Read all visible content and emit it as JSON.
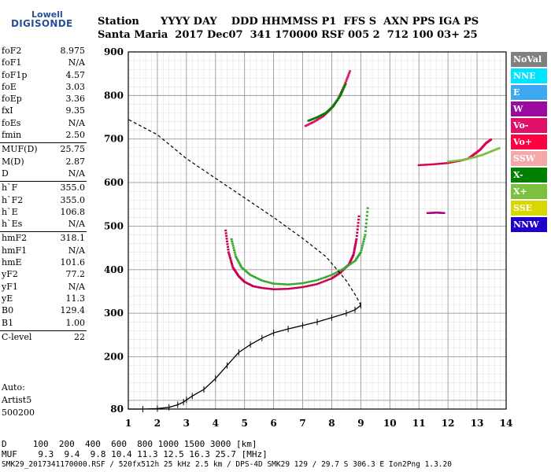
{
  "logo": {
    "line1": "Lowell",
    "line2": "DIGISONDE"
  },
  "header": {
    "row1": "Station      YYYY DAY    DDD HHMMSS P1  FFS S  AXN PPS IGA PS",
    "row2": "Santa Maria  2017 Dec07  341 170000 RSF 005 2  712 100 03+ 25"
  },
  "params": [
    [
      {
        "k": "foF2",
        "v": "8.975"
      },
      {
        "k": "foF1",
        "v": "N/A"
      },
      {
        "k": "foF1p",
        "v": "4.57"
      },
      {
        "k": "foE",
        "v": "3.03"
      },
      {
        "k": "foEp",
        "v": "3.36"
      },
      {
        "k": "fxI",
        "v": "9.35"
      },
      {
        "k": "foEs",
        "v": "N/A"
      },
      {
        "k": "fmin",
        "v": "2.50"
      }
    ],
    [
      {
        "k": "MUF(D)",
        "v": "25.75"
      },
      {
        "k": "M(D)",
        "v": "2.87"
      },
      {
        "k": "D",
        "v": "N/A"
      }
    ],
    [
      {
        "k": "h`F",
        "v": "355.0"
      },
      {
        "k": "h`F2",
        "v": "355.0"
      },
      {
        "k": "h`E",
        "v": "106.8"
      },
      {
        "k": "h`Es",
        "v": "N/A"
      }
    ],
    [
      {
        "k": "hmF2",
        "v": "318.1"
      },
      {
        "k": "hmF1",
        "v": "N/A"
      },
      {
        "k": "hmE",
        "v": "101.6"
      },
      {
        "k": "yF2",
        "v": "77.2"
      },
      {
        "k": "yF1",
        "v": "N/A"
      },
      {
        "k": "yE",
        "v": "11.3"
      },
      {
        "k": "B0",
        "v": "129.4"
      },
      {
        "k": "B1",
        "v": "1.00"
      }
    ],
    [
      {
        "k": "C-level",
        "v": "22"
      }
    ]
  ],
  "auto": {
    "line1": "Auto:",
    "line2": "Artist5",
    "line3": "500200"
  },
  "legend": [
    {
      "label": "NoVal",
      "color": "#808080"
    },
    {
      "label": "NNE",
      "color": "#00e5ff"
    },
    {
      "label": "E",
      "color": "#3ea8f0"
    },
    {
      "label": "W",
      "color": "#9b0aa0"
    },
    {
      "label": "Vo-",
      "color": "#e0106a"
    },
    {
      "label": "Vo+",
      "color": "#ff0040"
    },
    {
      "label": "SSW",
      "color": "#f4a8a8"
    },
    {
      "label": "X-",
      "color": "#008000"
    },
    {
      "label": "X+",
      "color": "#7cc040"
    },
    {
      "label": "SSE",
      "color": "#d8d800"
    },
    {
      "label": "NNW",
      "color": "#2000c8"
    }
  ],
  "footer": {
    "row1": "D     100  200  400  600  800 1000 1500 3000 [km]",
    "row2": "MUF    9.3  9.4  9.8 10.4 11.3 12.5 16.3 25.7 [MHz]",
    "row3": "SMK29_2017341170000.RSF / 520fx512h 25 kHz 2.5 km / DPS-4D SMK29 129 / 29.7 S 306.3 E Ion2Png 1.3.20"
  },
  "chart_data": {
    "type": "scatter",
    "xlim": [
      1,
      14
    ],
    "ylim": [
      80,
      900
    ],
    "x_ticks": [
      1,
      2,
      3,
      4,
      5,
      6,
      7,
      8,
      9,
      10,
      11,
      12,
      13,
      14
    ],
    "y_ticks": [
      80,
      200,
      300,
      400,
      500,
      600,
      700,
      800,
      900
    ],
    "grid": true,
    "series": [
      {
        "color": "#c80050",
        "points": [
          [
            4.35,
            490
          ],
          [
            4.45,
            440
          ],
          [
            4.6,
            405
          ],
          [
            4.8,
            385
          ],
          [
            5.0,
            372
          ],
          [
            5.3,
            362
          ],
          [
            5.6,
            358
          ],
          [
            6.0,
            355
          ],
          [
            6.5,
            356
          ],
          [
            7.0,
            360
          ],
          [
            7.5,
            367
          ],
          [
            8.0,
            380
          ],
          [
            8.3,
            393
          ],
          [
            8.6,
            413
          ],
          [
            8.75,
            435
          ],
          [
            8.85,
            470
          ],
          [
            8.95,
            530
          ]
        ]
      },
      {
        "color": "#3aa830",
        "points": [
          [
            4.55,
            470
          ],
          [
            4.7,
            430
          ],
          [
            4.9,
            405
          ],
          [
            5.2,
            388
          ],
          [
            5.6,
            375
          ],
          [
            6.0,
            368
          ],
          [
            6.5,
            366
          ],
          [
            7.0,
            369
          ],
          [
            7.5,
            376
          ],
          [
            8.0,
            388
          ],
          [
            8.4,
            402
          ],
          [
            8.8,
            420
          ],
          [
            9.0,
            440
          ],
          [
            9.15,
            480
          ],
          [
            9.25,
            550
          ]
        ]
      },
      {
        "color": "#e0106a",
        "points": [
          [
            7.1,
            730
          ],
          [
            7.4,
            740
          ],
          [
            7.7,
            752
          ],
          [
            7.95,
            768
          ],
          [
            8.2,
            790
          ],
          [
            8.45,
            825
          ],
          [
            8.65,
            860
          ]
        ]
      },
      {
        "color": "#008000",
        "points": [
          [
            7.2,
            742
          ],
          [
            7.5,
            750
          ],
          [
            7.8,
            760
          ],
          [
            8.05,
            775
          ],
          [
            8.3,
            800
          ],
          [
            8.5,
            830
          ]
        ]
      },
      {
        "color": "#d80050",
        "points": [
          [
            11.0,
            640
          ],
          [
            11.5,
            642
          ],
          [
            12.0,
            645
          ],
          [
            12.4,
            650
          ],
          [
            12.7,
            655
          ],
          [
            12.9,
            665
          ],
          [
            13.1,
            675
          ],
          [
            13.3,
            690
          ],
          [
            13.5,
            700
          ]
        ]
      },
      {
        "color": "#7cc040",
        "points": [
          [
            12.0,
            648
          ],
          [
            12.5,
            652
          ],
          [
            12.9,
            658
          ],
          [
            13.2,
            664
          ],
          [
            13.5,
            672
          ],
          [
            13.8,
            680
          ]
        ]
      },
      {
        "color": "#b00080",
        "points": [
          [
            11.3,
            530
          ],
          [
            11.6,
            531
          ],
          [
            11.9,
            530
          ]
        ]
      }
    ],
    "profile": [
      [
        1.0,
        80
      ],
      [
        1.5,
        80
      ],
      [
        2.0,
        81
      ],
      [
        2.4,
        84
      ],
      [
        2.7,
        90
      ],
      [
        2.9,
        96
      ],
      [
        3.0,
        101
      ],
      [
        3.2,
        110
      ],
      [
        3.6,
        125
      ],
      [
        4.0,
        150
      ],
      [
        4.4,
        180
      ],
      [
        4.8,
        210
      ],
      [
        5.2,
        228
      ],
      [
        5.6,
        243
      ],
      [
        6.0,
        255
      ],
      [
        6.5,
        264
      ],
      [
        7.0,
        272
      ],
      [
        7.5,
        280
      ],
      [
        8.0,
        290
      ],
      [
        8.5,
        300
      ],
      [
        8.8,
        308
      ],
      [
        9.0,
        318
      ]
    ],
    "profile_upper": [
      [
        9.0,
        318
      ],
      [
        8.85,
        338
      ],
      [
        8.5,
        375
      ],
      [
        7.8,
        430
      ],
      [
        7.0,
        472
      ],
      [
        6.0,
        520
      ],
      [
        5.0,
        565
      ],
      [
        4.0,
        610
      ],
      [
        3.0,
        655
      ],
      [
        2.0,
        710
      ],
      [
        1.0,
        745
      ]
    ]
  }
}
